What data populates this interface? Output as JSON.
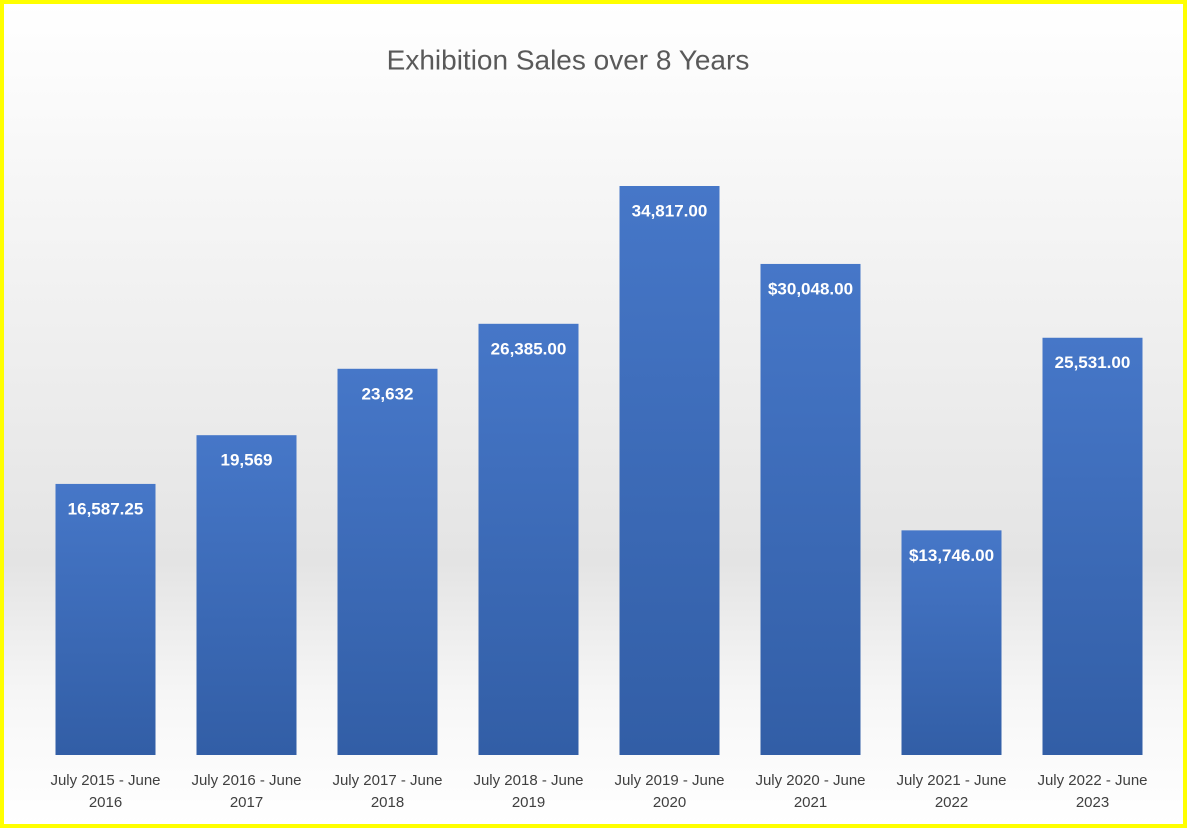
{
  "chart_data": {
    "type": "bar",
    "title": "Exhibition Sales over 8 Years",
    "categories": [
      "July 2015 - June 2016",
      "July 2016 - June 2017",
      "July 2017 - June 2018",
      "July 2018 - June 2019",
      "July 2019 - June 2020",
      "July 2020 - June 2021",
      "July 2021 - June 2022",
      "July 2022 - June 2023"
    ],
    "values": [
      16587.25,
      19569,
      23632,
      26385,
      34817,
      30048,
      13746,
      25531
    ],
    "value_labels": [
      "16,587.25",
      "19,569",
      "23,632",
      "26,385.00",
      "34,817.00",
      "$30,048.00",
      "$13,746.00",
      "25,531.00"
    ],
    "color": "#4472c4"
  }
}
